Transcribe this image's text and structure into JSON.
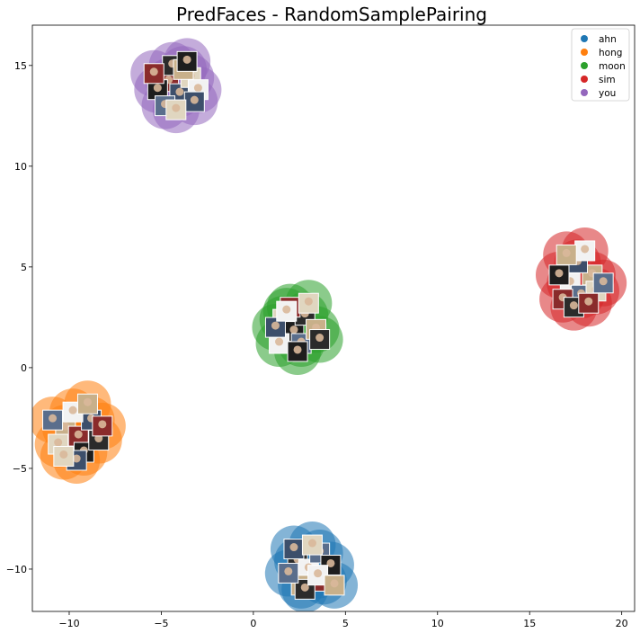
{
  "chart_data": {
    "type": "scatter",
    "title": "PredFaces - RandomSamplePairing",
    "xlabel": "",
    "ylabel": "",
    "xlim": [
      -12,
      20.7
    ],
    "ylim": [
      -12.1,
      17.0
    ],
    "xticks": [
      -10,
      -5,
      0,
      5,
      10,
      15,
      20
    ],
    "yticks": [
      -10,
      -5,
      0,
      5,
      10,
      15
    ],
    "xtick_labels": [
      "−10",
      "−5",
      "0",
      "5",
      "10",
      "15",
      "20"
    ],
    "ytick_labels": [
      "−10",
      "−5",
      "0",
      "5",
      "10",
      "15"
    ],
    "grid": false,
    "legend_position": "top-right",
    "series": [
      {
        "name": "ahn",
        "color": "#1f77b4",
        "points": [
          [
            2.4,
            -9.6
          ],
          [
            3.0,
            -10.0
          ],
          [
            3.6,
            -9.2
          ],
          [
            2.6,
            -10.8
          ],
          [
            3.8,
            -10.6
          ],
          [
            2.2,
            -9.0
          ],
          [
            3.2,
            -8.8
          ],
          [
            4.2,
            -9.8
          ],
          [
            2.8,
            -11.0
          ],
          [
            3.5,
            -10.3
          ],
          [
            1.9,
            -10.2
          ],
          [
            4.4,
            -10.8
          ]
        ]
      },
      {
        "name": "hong",
        "color": "#ff7f0e",
        "points": [
          [
            -10.2,
            -3.0
          ],
          [
            -9.5,
            -3.4
          ],
          [
            -8.8,
            -2.6
          ],
          [
            -10.6,
            -3.8
          ],
          [
            -9.2,
            -4.2
          ],
          [
            -8.4,
            -3.6
          ],
          [
            -9.8,
            -2.2
          ],
          [
            -10.9,
            -2.6
          ],
          [
            -9.0,
            -1.8
          ],
          [
            -8.2,
            -2.9
          ],
          [
            -9.6,
            -4.6
          ],
          [
            -10.3,
            -4.4
          ]
        ]
      },
      {
        "name": "moon",
        "color": "#2ca02c",
        "points": [
          [
            1.6,
            2.4
          ],
          [
            2.2,
            1.8
          ],
          [
            2.8,
            2.6
          ],
          [
            1.4,
            1.2
          ],
          [
            2.6,
            1.2
          ],
          [
            3.4,
            1.9
          ],
          [
            2.0,
            3.0
          ],
          [
            1.2,
            2.0
          ],
          [
            3.0,
            3.2
          ],
          [
            2.4,
            0.8
          ],
          [
            3.6,
            1.4
          ],
          [
            1.8,
            2.8
          ]
        ]
      },
      {
        "name": "sim",
        "color": "#d62728",
        "points": [
          [
            17.2,
            4.2
          ],
          [
            17.8,
            3.6
          ],
          [
            18.4,
            4.6
          ],
          [
            16.8,
            3.4
          ],
          [
            17.6,
            5.2
          ],
          [
            18.6,
            3.8
          ],
          [
            16.6,
            4.6
          ],
          [
            17.4,
            3.0
          ],
          [
            18.0,
            5.8
          ],
          [
            19.0,
            4.2
          ],
          [
            17.0,
            5.6
          ],
          [
            18.2,
            3.2
          ]
        ]
      },
      {
        "name": "you",
        "color": "#9467bd",
        "points": [
          [
            -4.6,
            14.2
          ],
          [
            -4.0,
            13.6
          ],
          [
            -3.4,
            14.4
          ],
          [
            -5.2,
            13.8
          ],
          [
            -4.4,
            15.0
          ],
          [
            -3.0,
            13.8
          ],
          [
            -4.8,
            13.0
          ],
          [
            -3.8,
            14.8
          ],
          [
            -5.4,
            14.6
          ],
          [
            -3.2,
            13.2
          ],
          [
            -4.2,
            12.8
          ],
          [
            -3.6,
            15.2
          ]
        ]
      }
    ]
  }
}
